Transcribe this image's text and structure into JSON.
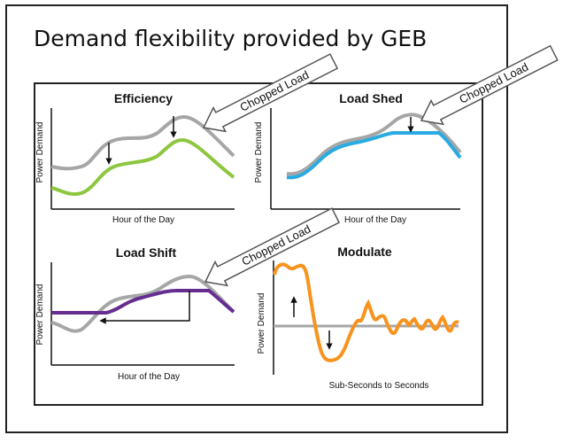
{
  "slide": {
    "title": "Demand flexibility provided by GEB"
  },
  "callouts": {
    "top_left": "Chopped Load",
    "top_right": "Chopped Load",
    "mid_left": "Chopped Load"
  },
  "charts": {
    "efficiency": {
      "title": "Efficiency",
      "ylabel": "Power Demand",
      "xlabel": "Hour of the Day"
    },
    "load_shed": {
      "title": "Load Shed",
      "ylabel": "Power Demand",
      "xlabel": "Hour of the Day"
    },
    "load_shift": {
      "title": "Load Shift",
      "ylabel": "Power Demand",
      "xlabel": "Hour of the Day"
    },
    "modulate": {
      "title": "Modulate",
      "ylabel": "Power Demand",
      "xlabel": "Sub-Seconds to Seconds"
    }
  },
  "colors": {
    "baseline": "#a6a6a6",
    "efficiency": "#8dc63f",
    "load_shed": "#29abe2",
    "load_shift": "#662d91",
    "modulate": "#f7931e"
  }
}
